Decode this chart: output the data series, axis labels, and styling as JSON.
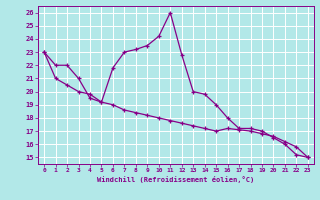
{
  "xlabel": "Windchill (Refroidissement éolien,°C)",
  "background_color": "#b2e8e8",
  "grid_color": "#aadddd",
  "line_color": "#880088",
  "x_vals": [
    0,
    1,
    2,
    3,
    4,
    5,
    6,
    7,
    8,
    9,
    10,
    11,
    12,
    13,
    14,
    15,
    16,
    17,
    18,
    19,
    20,
    21,
    22,
    23
  ],
  "y_line1": [
    23,
    22,
    22,
    21,
    19.5,
    19.2,
    21.8,
    23.0,
    23.2,
    23.5,
    24.2,
    26.0,
    22.8,
    20.0,
    19.8,
    19.0,
    18.0,
    17.2,
    17.2,
    17.0,
    16.5,
    16.0,
    15.2,
    15.0
  ],
  "y_line2": [
    23,
    21.0,
    20.5,
    20.0,
    19.8,
    19.2,
    19.0,
    18.6,
    18.4,
    18.2,
    18.0,
    17.8,
    17.6,
    17.4,
    17.2,
    17.0,
    17.2,
    17.1,
    17.0,
    16.8,
    16.6,
    16.2,
    15.8,
    15.0
  ],
  "ylim": [
    14.5,
    26.5
  ],
  "xlim": [
    -0.5,
    23.5
  ],
  "yticks": [
    15,
    16,
    17,
    18,
    19,
    20,
    21,
    22,
    23,
    24,
    25,
    26
  ],
  "xticks": [
    0,
    1,
    2,
    3,
    4,
    5,
    6,
    7,
    8,
    9,
    10,
    11,
    12,
    13,
    14,
    15,
    16,
    17,
    18,
    19,
    20,
    21,
    22,
    23
  ]
}
